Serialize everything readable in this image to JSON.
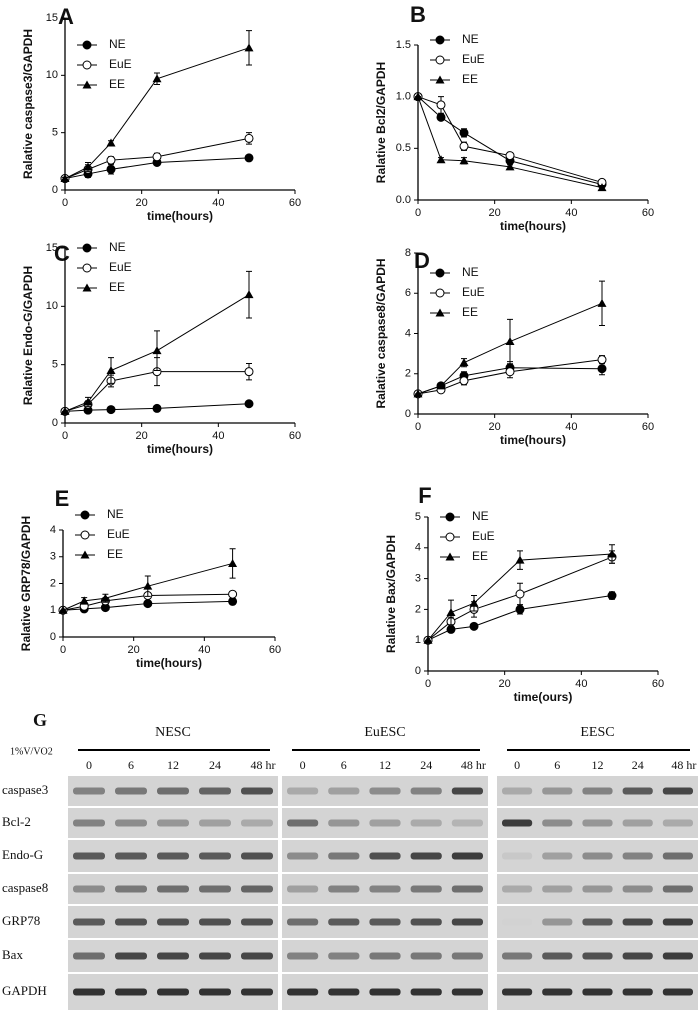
{
  "chart_data": [
    {
      "type": "line",
      "panel": "A",
      "ylabel": "Ralative caspase3/GAPDH",
      "xlabel": "time(hours)",
      "x": [
        0,
        6,
        12,
        24,
        48
      ],
      "xlim": [
        0,
        60
      ],
      "xticks": [
        0,
        20,
        40,
        60
      ],
      "ylim": [
        0,
        15
      ],
      "yticks": [
        0,
        5,
        10,
        15
      ],
      "series": [
        {
          "name": "NE",
          "color": "#000000",
          "marker": "filled-circle",
          "values": [
            1,
            1.4,
            1.8,
            2.4,
            2.8
          ],
          "errors": [
            0.1,
            0.3,
            0.4,
            0.2,
            0.2
          ]
        },
        {
          "name": "EuE",
          "color": "#000000",
          "marker": "open-circle",
          "values": [
            1,
            1.8,
            2.6,
            2.9,
            4.5
          ],
          "errors": [
            0.1,
            0.4,
            0.3,
            0.3,
            0.5
          ]
        },
        {
          "name": "EE",
          "color": "#000000",
          "marker": "filled-triangle",
          "values": [
            1,
            2.0,
            4.1,
            9.7,
            12.4
          ],
          "errors": [
            0.1,
            0.4,
            0.2,
            0.5,
            1.5
          ]
        }
      ]
    },
    {
      "type": "line",
      "panel": "B",
      "ylabel": "Ralative Bcl2/GAPDH",
      "xlabel": "time(hours)",
      "x": [
        0,
        6,
        12,
        24,
        48
      ],
      "xlim": [
        0,
        60
      ],
      "xticks": [
        0,
        20,
        40,
        60
      ],
      "ylim": [
        0,
        1.5
      ],
      "yticks": [
        {
          "value": 0,
          "label": "0.0"
        },
        0.5,
        {
          "value": 1,
          "label": "1.0"
        },
        1.5
      ],
      "series": [
        {
          "name": "NE",
          "color": "#000000",
          "marker": "filled-circle",
          "values": [
            1,
            0.8,
            0.65,
            0.38,
            0.15
          ],
          "errors": [
            0,
            0.02,
            0.04,
            0.02,
            0.02
          ]
        },
        {
          "name": "EuE",
          "color": "#000000",
          "marker": "open-circle",
          "values": [
            1,
            0.92,
            0.52,
            0.43,
            0.17
          ],
          "errors": [
            0,
            0.08,
            0.04,
            0.02,
            0.02
          ]
        },
        {
          "name": "EE",
          "color": "#000000",
          "marker": "filled-triangle",
          "values": [
            1,
            0.39,
            0.38,
            0.32,
            0.12
          ],
          "errors": [
            0,
            0.02,
            0.03,
            0.02,
            0.02
          ]
        }
      ]
    },
    {
      "type": "line",
      "panel": "C",
      "ylabel": "Ralative Endo-G/GAPDH",
      "xlabel": "time(hours)",
      "x": [
        0,
        6,
        12,
        24,
        48
      ],
      "xlim": [
        0,
        60
      ],
      "xticks": [
        0,
        20,
        40,
        60
      ],
      "ylim": [
        0,
        15
      ],
      "yticks": [
        0,
        5,
        10,
        15
      ],
      "series": [
        {
          "name": "NE",
          "color": "#000000",
          "marker": "filled-circle",
          "values": [
            1,
            1.1,
            1.15,
            1.25,
            1.65
          ],
          "errors": [
            0,
            0.1,
            0.1,
            0.1,
            0.1
          ]
        },
        {
          "name": "EuE",
          "color": "#000000",
          "marker": "open-circle",
          "values": [
            1,
            1.6,
            3.6,
            4.4,
            4.4
          ],
          "errors": [
            0,
            0.3,
            0.5,
            1.2,
            0.7
          ]
        },
        {
          "name": "EE",
          "color": "#000000",
          "marker": "filled-triangle",
          "values": [
            1,
            1.8,
            4.5,
            6.2,
            11.0
          ],
          "errors": [
            0,
            0.4,
            1.1,
            1.7,
            2.0
          ]
        }
      ]
    },
    {
      "type": "line",
      "panel": "D",
      "ylabel": "Ralative caspase8/GAPDH",
      "xlabel": "time(hours)",
      "x": [
        0,
        6,
        12,
        24,
        48
      ],
      "xlim": [
        0,
        60
      ],
      "xticks": [
        0,
        20,
        40,
        60
      ],
      "ylim": [
        0,
        8
      ],
      "yticks": [
        0,
        2,
        4,
        6,
        8
      ],
      "series": [
        {
          "name": "NE",
          "color": "#000000",
          "marker": "filled-circle",
          "values": [
            1,
            1.4,
            1.9,
            2.3,
            2.25
          ],
          "errors": [
            0,
            0.1,
            0.2,
            0.3,
            0.3
          ]
        },
        {
          "name": "EuE",
          "color": "#000000",
          "marker": "open-circle",
          "values": [
            1,
            1.2,
            1.65,
            2.1,
            2.7
          ],
          "errors": [
            0,
            0.1,
            0.2,
            0.3,
            0.2
          ]
        },
        {
          "name": "EE",
          "color": "#000000",
          "marker": "filled-triangle",
          "values": [
            1,
            1.4,
            2.55,
            3.6,
            5.5
          ],
          "errors": [
            0,
            0.1,
            0.2,
            1.1,
            1.1
          ]
        }
      ]
    },
    {
      "type": "line",
      "panel": "E",
      "ylabel": "Ralative GRP78/GAPDH",
      "xlabel": "time(hours)",
      "x": [
        0,
        6,
        12,
        24,
        48
      ],
      "xlim": [
        0,
        60
      ],
      "xticks": [
        0,
        20,
        40,
        60
      ],
      "ylim": [
        0,
        4
      ],
      "yticks": [
        0,
        1,
        2,
        3,
        4
      ],
      "series": [
        {
          "name": "NE",
          "color": "#000000",
          "marker": "filled-circle",
          "values": [
            1,
            1.05,
            1.1,
            1.25,
            1.33
          ],
          "errors": [
            0,
            0.05,
            0.05,
            0.05,
            0.1
          ]
        },
        {
          "name": "EuE",
          "color": "#000000",
          "marker": "open-circle",
          "values": [
            1,
            1.15,
            1.35,
            1.55,
            1.6
          ],
          "errors": [
            0,
            0.05,
            0.1,
            0.08,
            0.1
          ]
        },
        {
          "name": "EE",
          "color": "#000000",
          "marker": "filled-triangle",
          "values": [
            1,
            1.35,
            1.45,
            1.9,
            2.75
          ],
          "errors": [
            0,
            0.12,
            0.15,
            0.38,
            0.55
          ]
        }
      ]
    },
    {
      "type": "line",
      "panel": "F",
      "ylabel": "Ralative Bax/GAPDH",
      "xlabel": "time(ours)",
      "x": [
        0,
        6,
        12,
        24,
        48
      ],
      "xlim": [
        0,
        60
      ],
      "xticks": [
        0,
        20,
        40,
        60
      ],
      "ylim": [
        0,
        5
      ],
      "yticks": [
        0,
        1,
        2,
        3,
        4,
        5
      ],
      "series": [
        {
          "name": "NE",
          "color": "#000000",
          "marker": "filled-circle",
          "values": [
            1,
            1.35,
            1.45,
            2.0,
            2.45
          ],
          "errors": [
            0,
            0.05,
            0.05,
            0.15,
            0.12
          ]
        },
        {
          "name": "EuE",
          "color": "#000000",
          "marker": "open-circle",
          "values": [
            1,
            1.6,
            2.0,
            2.5,
            3.7
          ],
          "errors": [
            0,
            0.15,
            0.25,
            0.35,
            0.2
          ]
        },
        {
          "name": "EE",
          "color": "#000000",
          "marker": "filled-triangle",
          "values": [
            1,
            1.9,
            2.2,
            3.6,
            3.8
          ],
          "errors": [
            0,
            0.4,
            0.25,
            0.3,
            0.3
          ]
        }
      ]
    }
  ],
  "blot": {
    "panel": "G",
    "treatment": "1%V/VO2",
    "groups": [
      "NESC",
      "EuESC",
      "EESC"
    ],
    "timepoints": [
      "0",
      "6",
      "12",
      "24",
      "48 hr"
    ],
    "proteins": [
      "caspase3",
      "Bcl-2",
      "Endo-G",
      "caspase8",
      "GRP78",
      "Bax",
      "GAPDH"
    ]
  }
}
